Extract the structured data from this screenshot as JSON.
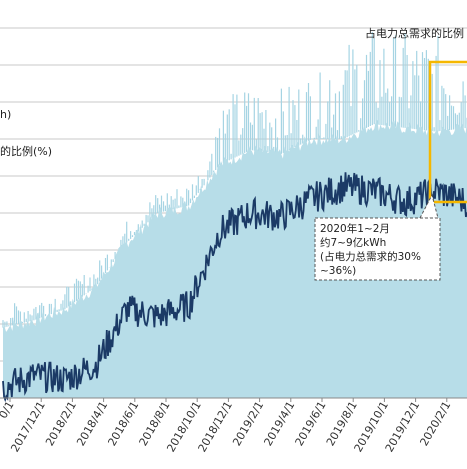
{
  "chart_data": {
    "type": "area",
    "title": "",
    "legend_partial": {
      "top_right": "占电力总需求的比例",
      "label_upper": "h)",
      "label_lower": "的比例(%)"
    },
    "x_tick_labels": [
      "0/1",
      "2017/12/1",
      "2018/2/1",
      "2018/4/1",
      "2018/6/1",
      "2018/8/1",
      "2018/10/1",
      "2018/12/1",
      "2019/2/1",
      "2019/4/1",
      "2019/6/1",
      "2019/8/1",
      "2019/10/1",
      "2019/12/1",
      "2020/2/1"
    ],
    "series": [
      {
        "name": "",
        "style": "light-blue daily area + spikes",
        "monthly_level": [
          1.9,
          2.1,
          2.4,
          3.0,
          4.2,
          5.0,
          5.2,
          6.3,
          6.7,
          6.6,
          7.0,
          7.0,
          7.4,
          7.3,
          7.2,
          7.3
        ]
      },
      {
        "name": "",
        "style": "dark navy line",
        "monthly_level": [
          0.3,
          0.6,
          0.5,
          0.9,
          2.4,
          2.2,
          2.5,
          4.5,
          5.0,
          4.9,
          5.4,
          5.7,
          5.6,
          5.3,
          5.6,
          5.3
        ]
      }
    ],
    "annotation": {
      "lines": [
        "2020年1~2月",
        "约7~9亿kWh",
        "(占电力总需求的30%",
        "~36%)"
      ],
      "highlight_range": [
        "2020/1/1",
        "2020/2/29"
      ]
    },
    "colors": {
      "area": "#b7dde8",
      "spike": "#a6d4e3",
      "line": "#1b3a66",
      "highlight": "#f5b700",
      "grid": "#c8c8c8"
    }
  }
}
